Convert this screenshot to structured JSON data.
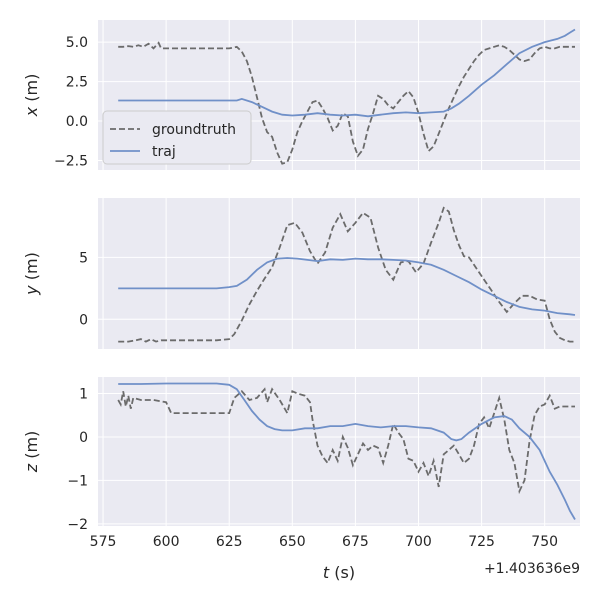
{
  "chart_data": [
    {
      "type": "line",
      "ylabel_var": "x",
      "ylabel_unit": " (m)",
      "ylim": [
        -3.1,
        6.4
      ],
      "yticks": [
        -2.5,
        0.0,
        2.5,
        5.0
      ],
      "ytick_labels": [
        "−2.5",
        "0.0",
        "2.5",
        "5.0"
      ],
      "legend": {
        "entries": [
          "groundtruth",
          "traj"
        ],
        "placement": "center-left"
      },
      "series": [
        {
          "name": "groundtruth",
          "style": "dashed",
          "color": "#6b6b6b",
          "x": [
            581,
            583,
            585,
            587,
            589,
            591,
            593,
            595,
            597,
            598,
            600,
            605,
            610,
            615,
            620,
            625,
            628,
            630,
            632,
            634,
            636,
            638,
            640,
            642,
            644,
            646,
            648,
            650,
            652,
            654,
            656,
            658,
            660,
            662,
            664,
            666,
            668,
            670,
            672,
            674,
            676,
            678,
            680,
            682,
            684,
            686,
            688,
            690,
            692,
            694,
            696,
            698,
            700,
            702,
            704,
            706,
            708,
            710,
            712,
            714,
            716,
            718,
            720,
            722,
            724,
            726,
            728,
            730,
            732,
            734,
            736,
            738,
            740,
            742,
            744,
            746,
            748,
            750,
            752,
            754,
            756,
            758,
            760,
            762
          ],
          "y": [
            4.7,
            4.7,
            4.75,
            4.7,
            4.8,
            4.7,
            4.9,
            4.6,
            4.95,
            4.6,
            4.6,
            4.6,
            4.6,
            4.6,
            4.6,
            4.6,
            4.7,
            4.4,
            3.8,
            2.8,
            1.5,
            0.2,
            -0.7,
            -1.0,
            -2.0,
            -2.7,
            -2.6,
            -1.8,
            -0.7,
            0.0,
            0.6,
            1.2,
            1.3,
            0.8,
            0.2,
            -0.6,
            -0.3,
            0.5,
            0.3,
            -1.3,
            -2.2,
            -1.8,
            -0.5,
            0.5,
            1.6,
            1.4,
            1.0,
            0.8,
            1.2,
            1.6,
            1.9,
            1.5,
            0.5,
            -0.8,
            -1.9,
            -1.6,
            -0.8,
            0.0,
            0.8,
            1.5,
            2.2,
            2.8,
            3.3,
            3.8,
            4.2,
            4.5,
            4.6,
            4.7,
            4.8,
            4.7,
            4.5,
            4.2,
            3.9,
            3.8,
            3.9,
            4.3,
            4.6,
            4.7,
            4.6,
            4.6,
            4.7,
            4.7,
            4.7,
            4.7
          ]
        },
        {
          "name": "traj",
          "style": "solid",
          "color": "#7090c8",
          "x": [
            581,
            590,
            600,
            610,
            620,
            626,
            628,
            630,
            634,
            638,
            642,
            646,
            650,
            655,
            660,
            665,
            670,
            675,
            680,
            685,
            690,
            695,
            700,
            705,
            710,
            713,
            716,
            720,
            725,
            730,
            735,
            740,
            745,
            750,
            755,
            758,
            760,
            762
          ],
          "y": [
            1.3,
            1.3,
            1.3,
            1.3,
            1.3,
            1.3,
            1.3,
            1.4,
            1.2,
            0.9,
            0.6,
            0.4,
            0.35,
            0.4,
            0.5,
            0.4,
            0.35,
            0.4,
            0.3,
            0.4,
            0.5,
            0.55,
            0.5,
            0.55,
            0.6,
            0.8,
            1.1,
            1.6,
            2.3,
            2.9,
            3.6,
            4.3,
            4.7,
            5.0,
            5.2,
            5.4,
            5.6,
            5.8
          ]
        }
      ]
    },
    {
      "type": "line",
      "ylabel_var": "y",
      "ylabel_unit": " (m)",
      "ylim": [
        -2.4,
        9.8
      ],
      "yticks": [
        0,
        5
      ],
      "ytick_labels": [
        "0",
        "5"
      ],
      "series": [
        {
          "name": "groundtruth",
          "style": "dashed",
          "color": "#6b6b6b",
          "x": [
            581,
            585,
            588,
            590,
            592,
            594,
            596,
            598,
            600,
            605,
            610,
            615,
            620,
            625,
            627,
            630,
            633,
            636,
            639,
            642,
            645,
            648,
            651,
            654,
            657,
            660,
            663,
            666,
            669,
            672,
            675,
            678,
            681,
            684,
            687,
            690,
            693,
            696,
            699,
            702,
            705,
            708,
            710,
            712,
            714,
            716,
            718,
            720,
            723,
            726,
            729,
            732,
            735,
            738,
            741,
            744,
            747,
            750,
            752,
            754,
            756,
            758,
            760,
            762
          ],
          "y": [
            -1.8,
            -1.8,
            -1.7,
            -1.6,
            -1.8,
            -1.6,
            -1.8,
            -1.7,
            -1.7,
            -1.7,
            -1.7,
            -1.7,
            -1.7,
            -1.6,
            -1.2,
            -0.1,
            1.2,
            2.3,
            3.3,
            4.2,
            5.8,
            7.6,
            7.8,
            7.0,
            5.5,
            4.5,
            5.4,
            7.4,
            8.5,
            7.1,
            7.8,
            8.6,
            8.2,
            5.8,
            4.0,
            3.2,
            4.6,
            4.7,
            3.8,
            4.5,
            6.2,
            7.8,
            9.0,
            8.7,
            7.2,
            6.0,
            5.1,
            5.0,
            4.1,
            3.2,
            2.3,
            1.4,
            0.6,
            1.3,
            1.9,
            1.9,
            1.6,
            1.5,
            0.0,
            -1.0,
            -1.5,
            -1.7,
            -1.8,
            -1.8
          ]
        },
        {
          "name": "traj",
          "style": "solid",
          "color": "#7090c8",
          "x": [
            581,
            590,
            600,
            610,
            620,
            625,
            628,
            632,
            636,
            640,
            644,
            648,
            652,
            656,
            660,
            665,
            670,
            675,
            680,
            685,
            690,
            695,
            700,
            705,
            710,
            715,
            720,
            725,
            730,
            735,
            740,
            745,
            750,
            755,
            760,
            762
          ],
          "y": [
            2.5,
            2.5,
            2.5,
            2.5,
            2.5,
            2.6,
            2.7,
            3.2,
            4.0,
            4.6,
            4.9,
            4.95,
            4.9,
            4.8,
            4.7,
            4.85,
            4.8,
            4.9,
            4.85,
            4.85,
            4.8,
            4.75,
            4.6,
            4.4,
            4.0,
            3.5,
            3.0,
            2.4,
            1.9,
            1.4,
            1.0,
            0.8,
            0.7,
            0.5,
            0.4,
            0.35
          ]
        }
      ]
    },
    {
      "type": "line",
      "ylabel_var": "z",
      "ylabel_unit": " (m)",
      "ylim": [
        -2.05,
        1.38
      ],
      "yticks": [
        -2,
        -1,
        0,
        1
      ],
      "ytick_labels": [
        "−2",
        "−1",
        "0",
        "1"
      ],
      "xlabel_var": "t",
      "xlabel_unit": " (s)",
      "xlim": [
        573,
        764
      ],
      "xticks": [
        575,
        600,
        625,
        650,
        675,
        700,
        725,
        750
      ],
      "xtick_labels": [
        "575",
        "600",
        "625",
        "650",
        "675",
        "700",
        "725",
        "750"
      ],
      "x_offset_label": "+1.403636e9",
      "series": [
        {
          "name": "groundtruth",
          "style": "dashed",
          "color": "#6b6b6b",
          "x": [
            581,
            582,
            583,
            584,
            585,
            586,
            587,
            590,
            595,
            600,
            602,
            605,
            610,
            615,
            620,
            625,
            627,
            630,
            633,
            636,
            639,
            640,
            642,
            645,
            648,
            650,
            652,
            655,
            657,
            658,
            660,
            662,
            664,
            666,
            668,
            670,
            672,
            674,
            676,
            678,
            680,
            682,
            684,
            686,
            688,
            690,
            692,
            694,
            696,
            698,
            700,
            702,
            704,
            706,
            708,
            710,
            712,
            714,
            716,
            718,
            720,
            722,
            724,
            726,
            728,
            730,
            732,
            734,
            736,
            738,
            740,
            742,
            744,
            746,
            748,
            750,
            752,
            754,
            756,
            758,
            760,
            762
          ],
          "y": [
            0.85,
            0.75,
            1.05,
            0.7,
            0.95,
            0.65,
            0.9,
            0.85,
            0.85,
            0.8,
            0.55,
            0.55,
            0.55,
            0.55,
            0.55,
            0.55,
            0.9,
            1.05,
            0.85,
            0.9,
            1.1,
            0.8,
            1.1,
            0.85,
            0.55,
            1.05,
            1.0,
            0.95,
            0.8,
            0.4,
            -0.2,
            -0.45,
            -0.6,
            -0.3,
            -0.55,
            0.0,
            -0.25,
            -0.65,
            -0.4,
            -0.15,
            -0.3,
            -0.2,
            -0.25,
            -0.6,
            -0.2,
            0.3,
            0.1,
            -0.05,
            -0.5,
            -0.55,
            -0.8,
            -0.6,
            -0.9,
            -0.55,
            -1.15,
            -0.4,
            -0.3,
            -0.2,
            -0.4,
            -0.6,
            -0.5,
            -0.2,
            0.3,
            0.45,
            0.2,
            0.55,
            0.9,
            0.4,
            -0.3,
            -0.6,
            -1.25,
            -1.0,
            -0.1,
            0.5,
            0.7,
            0.75,
            0.95,
            0.65,
            0.7,
            0.7,
            0.7,
            0.7
          ]
        },
        {
          "name": "traj",
          "style": "solid",
          "color": "#7090c8",
          "x": [
            581,
            590,
            600,
            610,
            620,
            625,
            628,
            631,
            634,
            637,
            640,
            643,
            646,
            650,
            655,
            660,
            665,
            670,
            675,
            680,
            685,
            690,
            695,
            700,
            705,
            710,
            713,
            715,
            717,
            720,
            725,
            730,
            734,
            737,
            740,
            744,
            748,
            752,
            755,
            758,
            760,
            762
          ],
          "y": [
            1.22,
            1.22,
            1.23,
            1.23,
            1.23,
            1.2,
            1.1,
            0.85,
            0.6,
            0.4,
            0.25,
            0.18,
            0.15,
            0.15,
            0.2,
            0.2,
            0.25,
            0.25,
            0.3,
            0.25,
            0.22,
            0.25,
            0.25,
            0.22,
            0.2,
            0.1,
            -0.05,
            -0.08,
            -0.05,
            0.1,
            0.3,
            0.45,
            0.48,
            0.4,
            0.2,
            0.0,
            -0.3,
            -0.8,
            -1.1,
            -1.45,
            -1.7,
            -1.9
          ]
        }
      ]
    }
  ]
}
